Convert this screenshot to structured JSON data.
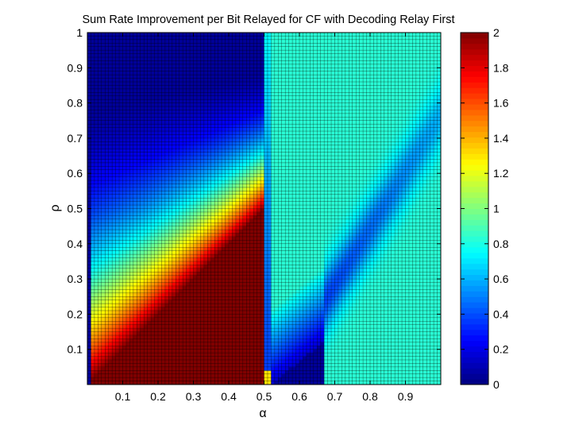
{
  "chart_data": {
    "type": "heatmap",
    "title": "Sum Rate Improvement per Bit Relayed for CF with Decoding Relay First",
    "xlabel": "α",
    "ylabel": "ρ",
    "xlim": [
      0,
      1
    ],
    "ylim": [
      0,
      1
    ],
    "x_ticks": [
      "0.1",
      "0.2",
      "0.3",
      "0.4",
      "0.5",
      "0.6",
      "0.7",
      "0.8",
      "0.9"
    ],
    "y_ticks": [
      "0.1",
      "0.2",
      "0.3",
      "0.4",
      "0.5",
      "0.6",
      "0.7",
      "0.8",
      "0.9",
      "1"
    ],
    "colorbar": {
      "colormap": "jet",
      "range": [
        0,
        2
      ],
      "ticks": [
        "0",
        "0.2",
        "0.4",
        "0.6",
        "0.8",
        "1",
        "1.2",
        "1.4",
        "1.6",
        "1.8",
        "2"
      ]
    },
    "grid_cells": [
      100,
      100
    ],
    "cell_edge_color": "#000000",
    "regions": [
      {
        "description": "near alpha=0",
        "approx_value": 0.05
      },
      {
        "description": "wedge below diagonal from (0,0) to (0.5,0.5)",
        "approx_value": 2.0
      },
      {
        "description": "wedge 0.51 < alpha < 0.68 at low rho",
        "approx_value": 0.05
      },
      {
        "description": "alpha > 0.68 at low rho",
        "approx_value": 0.83
      },
      {
        "description": "top right corner",
        "approx_value": 0.83
      }
    ]
  }
}
